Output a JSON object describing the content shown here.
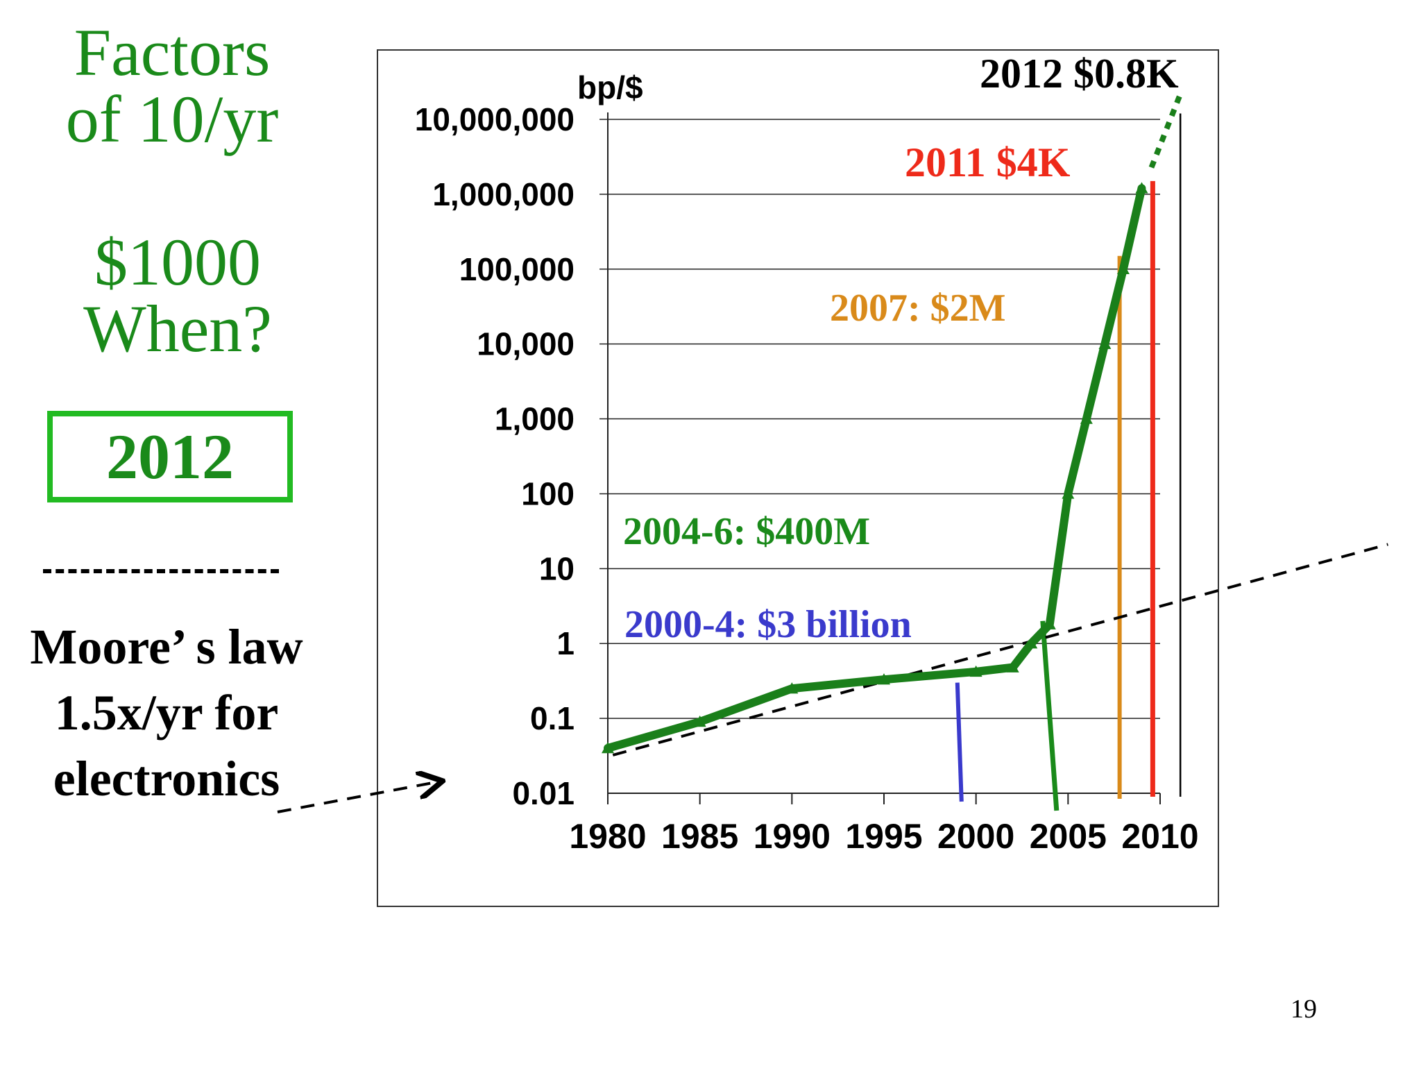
{
  "slide": {
    "title": "Factors of 10/yr",
    "question_line1": "$1000",
    "question_line2": "When?",
    "answer": "2012",
    "legend_dashes": "- - - - - - -",
    "moore_line1": "Moore’ s law",
    "moore_line2": "1.5x/yr for",
    "moore_line3": "electronics",
    "page_number": "19"
  },
  "colors": {
    "green_text": "#1a8a1a",
    "box_border": "#22bb22",
    "series_line": "#1a7f1a",
    "blue": "#3a3acc",
    "cyan": "#33ddcc",
    "orange": "#d98a1a",
    "red": "#ee2a1a"
  },
  "chart_data": {
    "type": "line",
    "ylabel": "bp/$",
    "y_scale": "log",
    "y_ticks": [
      0.01,
      0.1,
      1,
      10,
      100,
      1000,
      10000,
      100000,
      1000000,
      10000000
    ],
    "y_tick_labels": [
      "0.01",
      "0.1",
      "1",
      "10",
      "100",
      "1,000",
      "10,000",
      "100,000",
      "1,000,000",
      "10,000,000"
    ],
    "xlim": [
      1980,
      2010
    ],
    "x_ticks": [
      1980,
      1985,
      1990,
      1995,
      2000,
      2005,
      2010
    ],
    "x_tick_labels": [
      "1980",
      "1985",
      "1990",
      "1995",
      "2000",
      "2005",
      "2010"
    ],
    "grid": true,
    "series": [
      {
        "values": [
          [
            1980,
            0.04
          ],
          [
            1985,
            0.09
          ],
          [
            1990,
            0.25
          ],
          [
            1995,
            0.33
          ],
          [
            2000,
            0.42
          ],
          [
            2002,
            0.48
          ],
          [
            2003,
            1.0
          ],
          [
            2004,
            1.8
          ],
          [
            2005,
            100
          ],
          [
            2006,
            1000
          ],
          [
            2007,
            10000
          ],
          [
            2008,
            100000
          ],
          [
            2009,
            1200000
          ]
        ]
      }
    ],
    "extrapolation": [
      [
        2009,
        1200000
      ],
      [
        2010,
        12000000
      ]
    ],
    "moores_law_trend": [
      [
        1975,
        0.01
      ],
      [
        2022,
        40
      ]
    ],
    "annotations": [
      {
        "text": "2000-4: $3 billion",
        "color": "#3a3acc",
        "marker_year": 1999.1
      },
      {
        "text": "2004-6: $400M",
        "color": "#1a8a1a",
        "marker_year": 2004
      },
      {
        "text": "2007: $2M",
        "color": "#d98a1a",
        "marker_year": 2007.8
      },
      {
        "text": "2011 $4K",
        "color": "#ee2a1a",
        "marker_year": 2009.6
      },
      {
        "text": "2012 $0.8K",
        "color": "#000000",
        "marker_year": 2011.1
      }
    ]
  }
}
